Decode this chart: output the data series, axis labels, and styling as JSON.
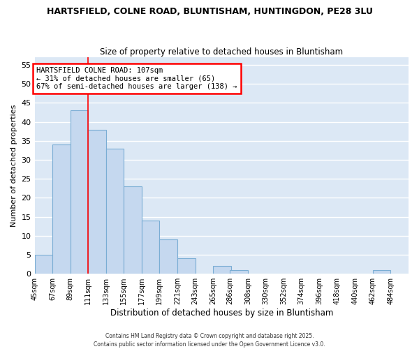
{
  "title": "HARTSFIELD, COLNE ROAD, BLUNTISHAM, HUNTINGDON, PE28 3LU",
  "subtitle": "Size of property relative to detached houses in Bluntisham",
  "xlabel": "Distribution of detached houses by size in Bluntisham",
  "ylabel": "Number of detached properties",
  "bar_color": "#c5d8ef",
  "bar_edge_color": "#7aadd4",
  "background_color": "#dce8f5",
  "grid_color": "#ffffff",
  "bin_labels": [
    "45sqm",
    "67sqm",
    "89sqm",
    "111sqm",
    "133sqm",
    "155sqm",
    "177sqm",
    "199sqm",
    "221sqm",
    "243sqm",
    "265sqm",
    "286sqm",
    "308sqm",
    "330sqm",
    "352sqm",
    "374sqm",
    "396sqm",
    "418sqm",
    "440sqm",
    "462sqm",
    "484sqm"
  ],
  "bar_values": [
    5,
    34,
    43,
    38,
    33,
    23,
    14,
    9,
    4,
    0,
    2,
    1,
    0,
    0,
    0,
    0,
    0,
    0,
    0,
    1,
    0
  ],
  "ylim": [
    0,
    57
  ],
  "yticks": [
    0,
    5,
    10,
    15,
    20,
    25,
    30,
    35,
    40,
    45,
    50,
    55
  ],
  "vline_x": 111,
  "bin_edges_sqm": [
    45,
    67,
    89,
    111,
    133,
    155,
    177,
    199,
    221,
    243,
    265,
    286,
    308,
    330,
    352,
    374,
    396,
    418,
    440,
    462,
    484,
    506
  ],
  "annotation_title": "HARTSFIELD COLNE ROAD: 107sqm",
  "annotation_line1": "← 31% of detached houses are smaller (65)",
  "annotation_line2": "67% of semi-detached houses are larger (138) →",
  "footer1": "Contains HM Land Registry data © Crown copyright and database right 2025.",
  "footer2": "Contains public sector information licensed under the Open Government Licence v3.0."
}
